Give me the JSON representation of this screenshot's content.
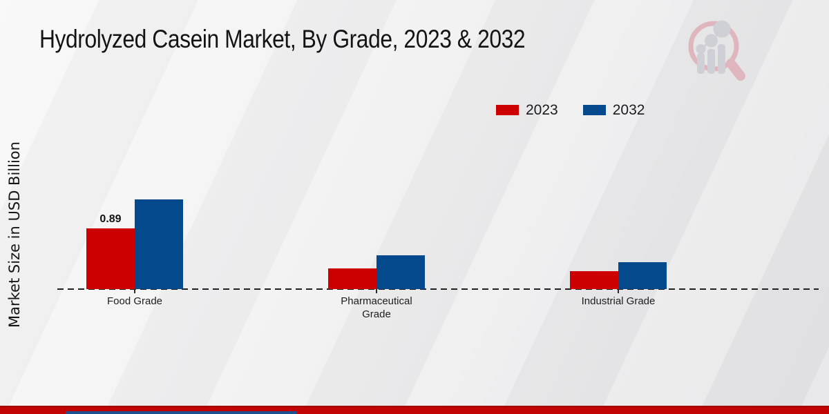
{
  "page": {
    "logo_name": "market-research-future-logo",
    "colors": {
      "background_light": "#ededee",
      "bottom_band_red": "#c20404",
      "bottom_strip_blue": "#1b5191",
      "watermark_pink": "#dfb6bd",
      "watermark_gray": "#cfcfd6"
    }
  },
  "chart_data": {
    "type": "bar",
    "title": "Hydrolyzed Casein Market, By Grade, 2023 & 2032",
    "xlabel": "",
    "ylabel": "Market Size in USD Billion",
    "categories": [
      "Food Grade",
      "Pharmaceutical Grade",
      "Industrial Grade"
    ],
    "series": [
      {
        "name": "2023",
        "color": "#cc0000",
        "values": [
          0.89,
          0.3,
          0.26
        ]
      },
      {
        "name": "2032",
        "color": "#04498c",
        "values": [
          1.31,
          0.49,
          0.39
        ]
      }
    ],
    "annotations": [
      {
        "series": "2023",
        "category": "Food Grade",
        "text": "0.89"
      }
    ],
    "ylim": [
      0,
      1.4
    ],
    "grid": false,
    "axis_style": "dashed-baseline-only",
    "legend_position": "top-right"
  }
}
